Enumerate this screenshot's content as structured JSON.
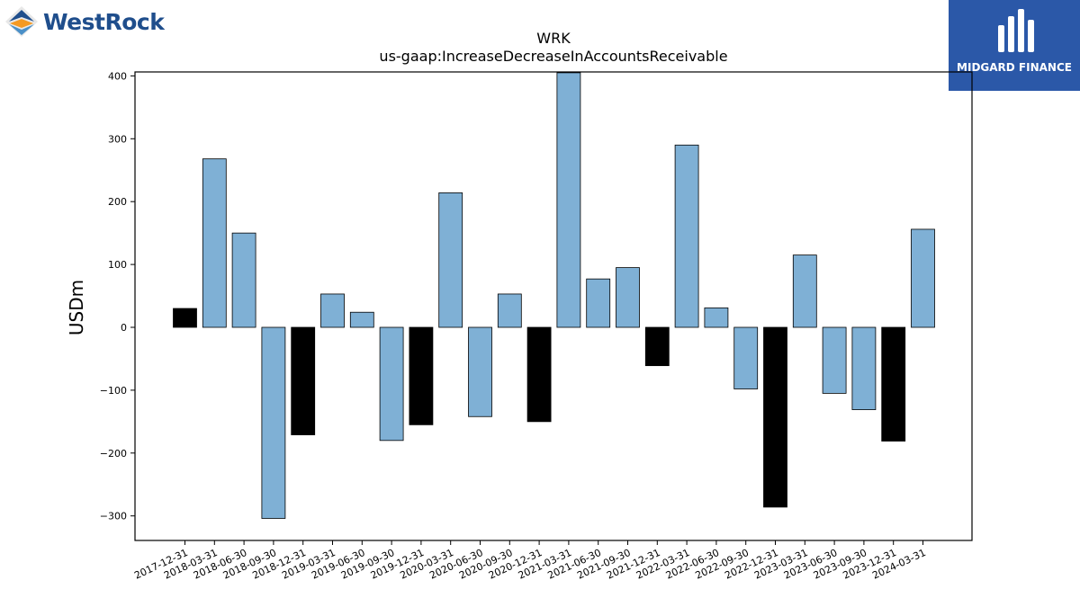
{
  "logos": {
    "left_brand": "WestRock",
    "right_brand": "MIDGARD FINANCE"
  },
  "colors": {
    "positive_bar": "#7fb0d5",
    "negative_year_end_bar": "#000000",
    "left_logo_text": "#1f4e8c",
    "right_logo_bg": "#2b58a8"
  },
  "chart_data": {
    "type": "bar",
    "title": "WRK",
    "subtitle": "us-gaap:IncreaseDecreaseInAccountsReceivable",
    "ylabel": "USDm",
    "xlabel": "",
    "ylim": [
      -340,
      405
    ],
    "yticks": [
      -300,
      -200,
      -100,
      0,
      100,
      200,
      300,
      400
    ],
    "grid": false,
    "categories": [
      "2017-12-31",
      "2018-03-31",
      "2018-06-30",
      "2018-09-30",
      "2018-12-31",
      "2019-03-31",
      "2019-06-30",
      "2019-09-30",
      "2019-12-31",
      "2020-03-31",
      "2020-06-30",
      "2020-09-30",
      "2020-12-31",
      "2021-03-31",
      "2021-06-30",
      "2021-09-30",
      "2021-12-31",
      "2022-03-31",
      "2022-06-30",
      "2022-09-30",
      "2022-12-31",
      "2023-03-31",
      "2023-06-30",
      "2023-09-30",
      "2023-12-31",
      "2024-03-31"
    ],
    "values": [
      30,
      268,
      150,
      -304,
      -171,
      53,
      24,
      -180,
      -155,
      214,
      -142,
      53,
      -150,
      405,
      77,
      95,
      -61,
      290,
      31,
      -98,
      -286,
      115,
      -105,
      -131,
      -181,
      156
    ],
    "highlight": [
      true,
      false,
      false,
      false,
      true,
      false,
      false,
      false,
      true,
      false,
      false,
      false,
      true,
      false,
      false,
      false,
      true,
      false,
      false,
      false,
      true,
      false,
      false,
      false,
      true,
      false
    ]
  }
}
